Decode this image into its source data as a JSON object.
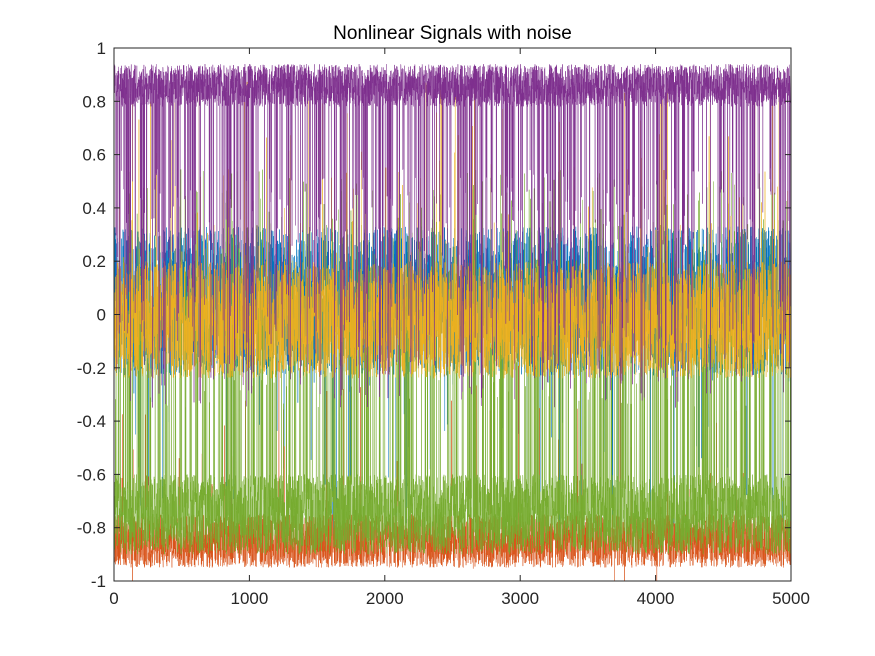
{
  "chart_data": {
    "type": "line",
    "title": "Nonlinear Signals with noise",
    "xlabel": "",
    "ylabel": "",
    "xlim": [
      0,
      5000
    ],
    "ylim": [
      -1,
      1
    ],
    "x_ticks": [
      0,
      1000,
      2000,
      3000,
      4000,
      5000
    ],
    "x_tick_labels": [
      "0",
      "1000",
      "2000",
      "3000",
      "4000",
      "5000"
    ],
    "y_ticks": [
      -1,
      -0.8,
      -0.6,
      -0.4,
      -0.2,
      0,
      0.2,
      0.4,
      0.6,
      0.8,
      1
    ],
    "y_tick_labels": [
      "-1",
      "-0.8",
      "-0.6",
      "-0.4",
      "-0.2",
      "0",
      "0.2",
      "0.4",
      "0.6",
      "0.8",
      "1"
    ],
    "grid": false,
    "legend": "none",
    "n_points": 5000,
    "series": [
      {
        "color": "#0072BD",
        "baseline": 0.05,
        "noise_amplitude": 0.28,
        "excursion_level": -0.4,
        "excursion_rate": 0.02
      },
      {
        "color": "#D95319",
        "baseline": -0.85,
        "noise_amplitude": 0.1,
        "excursion_level": -0.6,
        "excursion_rate": 0.01
      },
      {
        "color": "#77AC30",
        "baseline": -0.75,
        "noise_amplitude": 0.15,
        "excursion_level": 0.1,
        "excursion_rate": 0.12
      },
      {
        "color": "#EDB120",
        "baseline": -0.02,
        "noise_amplitude": 0.22,
        "excursion_level": 0.45,
        "excursion_rate": 0.03
      },
      {
        "color": "#7E2F8E",
        "baseline": 0.86,
        "noise_amplitude": 0.08,
        "excursion_level": 0.1,
        "excursion_rate": 0.1
      }
    ]
  }
}
